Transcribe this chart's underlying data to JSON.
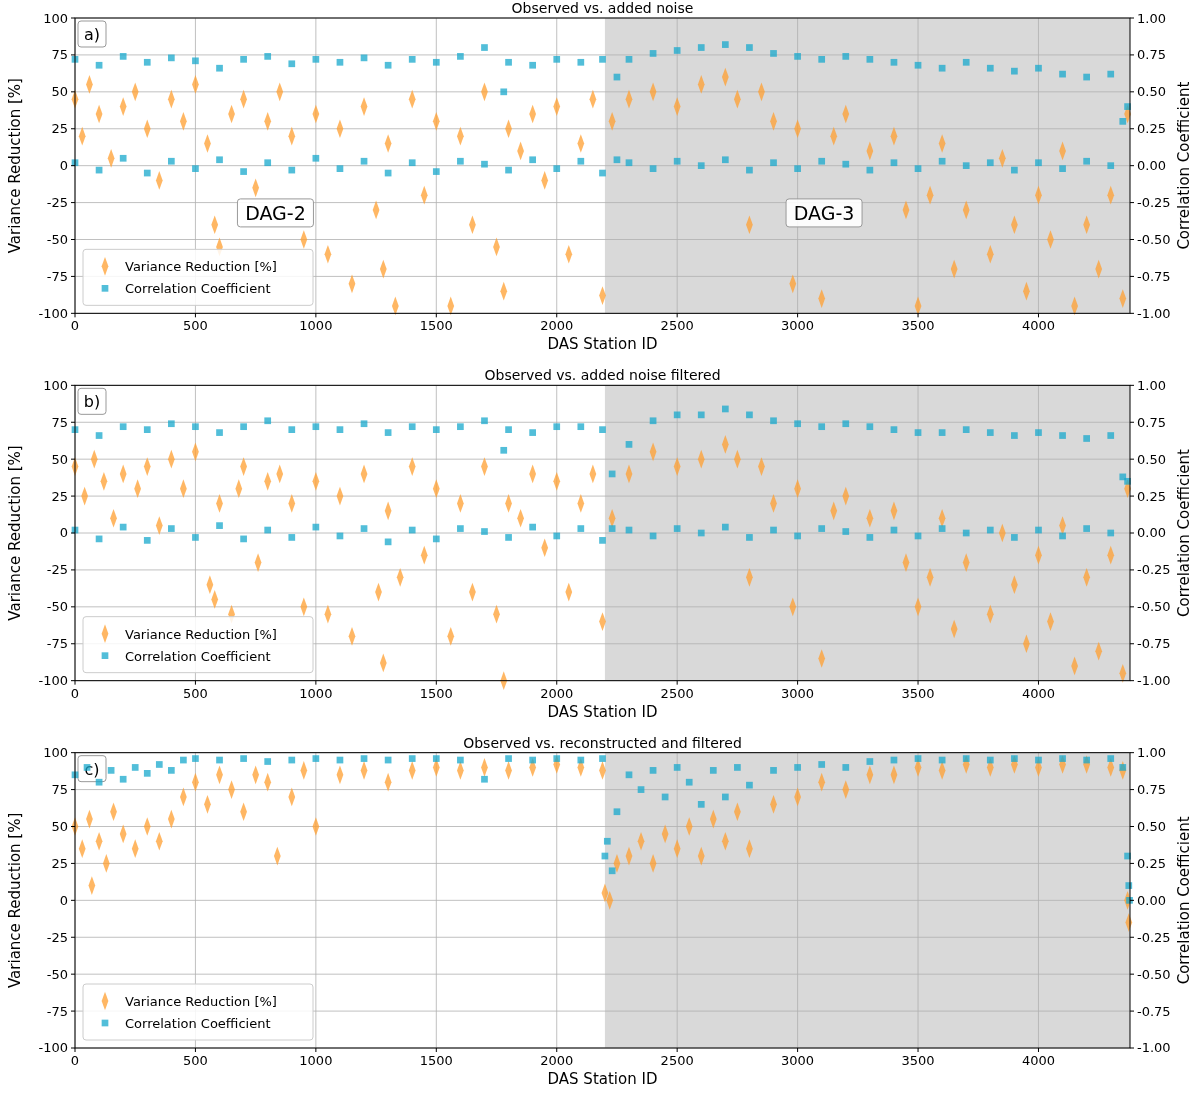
{
  "chart_data": [
    {
      "type": "scatter",
      "title": "Observed vs. added noise",
      "xlabel": "DAS Station ID",
      "ylabel": "Variance Reduction [%]",
      "y2label": "Correlation Coefficient",
      "xlim": [
        0,
        4380
      ],
      "xticks": [
        0,
        500,
        1000,
        1500,
        2000,
        2500,
        3000,
        3500,
        4000
      ],
      "ylim": [
        -100,
        100
      ],
      "yticks": [
        -100,
        -75,
        -50,
        -25,
        0,
        25,
        50,
        75,
        100
      ],
      "y2lim": [
        -1,
        1
      ],
      "y2ticks": [
        {
          "value": -1,
          "label": "-1.00"
        },
        {
          "value": -0.75,
          "label": "-0.75"
        },
        {
          "value": -0.5,
          "label": "-0.50"
        },
        {
          "value": -0.25,
          "label": "-0.25"
        },
        {
          "value": 0,
          "label": "0.00"
        },
        {
          "value": 0.25,
          "label": "0.25"
        },
        {
          "value": 0.5,
          "label": "0.50"
        },
        {
          "value": 0.75,
          "label": "0.75"
        },
        {
          "value": 1,
          "label": "1.00"
        }
      ],
      "grid": true,
      "legend": "bottom left",
      "bands": [
        {
          "axis": "x",
          "from": 2200,
          "to": 4380,
          "color": "#d9d9d9"
        }
      ],
      "annotations": [
        "a)",
        "DAG-2",
        "DAG-3"
      ],
      "series": [
        {
          "name": "Variance Reduction [%]",
          "color": "#ff9f30",
          "marker": "diamond",
          "x": [
            0,
            30,
            60,
            100,
            150,
            200,
            250,
            300,
            350,
            400,
            450,
            500,
            550,
            580,
            600,
            650,
            700,
            750,
            800,
            850,
            900,
            950,
            1000,
            1050,
            1100,
            1150,
            1200,
            1250,
            1280,
            1300,
            1330,
            1400,
            1450,
            1500,
            1560,
            1600,
            1650,
            1700,
            1750,
            1780,
            1800,
            1850,
            1900,
            1950,
            2000,
            2050,
            2100,
            2150,
            2190,
            2230,
            2300,
            2400,
            2500,
            2600,
            2700,
            2750,
            2800,
            2850,
            2900,
            2980,
            3000,
            3100,
            3150,
            3200,
            3300,
            3400,
            3450,
            3500,
            3550,
            3600,
            3650,
            3700,
            3800,
            3850,
            3900,
            3950,
            4000,
            4050,
            4100,
            4150,
            4200,
            4250,
            4300,
            4350,
            4370
          ],
          "values": [
            45,
            20,
            55,
            35,
            5,
            40,
            50,
            25,
            -10,
            45,
            30,
            55,
            15,
            -40,
            -55,
            35,
            45,
            -15,
            30,
            50,
            20,
            -50,
            35,
            -60,
            25,
            -80,
            40,
            -30,
            -70,
            15,
            -95,
            45,
            -20,
            30,
            -95,
            20,
            -40,
            50,
            -55,
            -85,
            25,
            10,
            35,
            -10,
            40,
            -60,
            15,
            45,
            -88,
            30,
            45,
            50,
            40,
            55,
            60,
            45,
            -40,
            50,
            30,
            -80,
            25,
            -90,
            20,
            35,
            10,
            20,
            -30,
            -95,
            -20,
            15,
            -70,
            -30,
            -60,
            5,
            -40,
            -85,
            -20,
            -50,
            10,
            -95,
            -40,
            -70,
            -20,
            -90,
            35
          ]
        },
        {
          "name": "Correlation Coefficient",
          "color": "#18a8cc",
          "marker": "square",
          "axis": "y2",
          "x": [
            0,
            0,
            100,
            100,
            200,
            200,
            300,
            300,
            400,
            400,
            500,
            500,
            600,
            600,
            700,
            700,
            800,
            800,
            900,
            900,
            1000,
            1000,
            1100,
            1100,
            1200,
            1200,
            1300,
            1300,
            1400,
            1400,
            1500,
            1500,
            1600,
            1600,
            1700,
            1700,
            1780,
            1800,
            1800,
            1900,
            1900,
            2000,
            2000,
            2100,
            2100,
            2190,
            2190,
            2250,
            2250,
            2300,
            2300,
            2400,
            2400,
            2500,
            2500,
            2600,
            2600,
            2700,
            2700,
            2800,
            2800,
            2900,
            2900,
            3000,
            3000,
            3100,
            3100,
            3200,
            3200,
            3300,
            3300,
            3400,
            3400,
            3500,
            3500,
            3600,
            3600,
            3700,
            3700,
            3800,
            3800,
            3900,
            3900,
            4000,
            4000,
            4100,
            4100,
            4200,
            4200,
            4300,
            4300,
            4350,
            4370
          ],
          "values": [
            0.72,
            0.02,
            0.68,
            -0.03,
            0.74,
            0.05,
            0.7,
            -0.05,
            0.73,
            0.03,
            0.71,
            -0.02,
            0.66,
            0.04,
            0.72,
            -0.04,
            0.74,
            0.02,
            0.69,
            -0.03,
            0.72,
            0.05,
            0.7,
            -0.02,
            0.73,
            0.03,
            0.68,
            -0.05,
            0.72,
            0.02,
            0.7,
            -0.04,
            0.74,
            0.03,
            0.8,
            0.01,
            0.5,
            0.7,
            -0.03,
            0.68,
            0.04,
            0.72,
            -0.02,
            0.7,
            0.03,
            0.72,
            -0.05,
            0.6,
            0.04,
            0.72,
            0.02,
            0.76,
            -0.02,
            0.78,
            0.03,
            0.8,
            0,
            0.82,
            0.04,
            0.8,
            -0.03,
            0.76,
            0.02,
            0.74,
            -0.02,
            0.72,
            0.03,
            0.74,
            0.01,
            0.72,
            -0.03,
            0.7,
            0.02,
            0.68,
            -0.02,
            0.66,
            0.03,
            0.7,
            0,
            0.66,
            0.02,
            0.64,
            -0.03,
            0.66,
            0.02,
            0.62,
            -0.02,
            0.6,
            0.03,
            0.62,
            0,
            0.3,
            0.4
          ]
        }
      ]
    },
    {
      "type": "scatter",
      "title": "Observed vs. added noise filtered",
      "xlabel": "DAS Station ID",
      "ylabel": "Variance Reduction [%]",
      "y2label": "Correlation Coefficient",
      "xlim": [
        0,
        4380
      ],
      "xticks": [
        0,
        500,
        1000,
        1500,
        2000,
        2500,
        3000,
        3500,
        4000
      ],
      "ylim": [
        -100,
        100
      ],
      "yticks": [
        -100,
        -75,
        -50,
        -25,
        0,
        25,
        50,
        75,
        100
      ],
      "y2lim": [
        -1,
        1
      ],
      "y2ticks": [
        {
          "value": -1,
          "label": "-1.00"
        },
        {
          "value": -0.75,
          "label": "-0.75"
        },
        {
          "value": -0.5,
          "label": "-0.50"
        },
        {
          "value": -0.25,
          "label": "-0.25"
        },
        {
          "value": 0,
          "label": "0.00"
        },
        {
          "value": 0.25,
          "label": "0.25"
        },
        {
          "value": 0.5,
          "label": "0.50"
        },
        {
          "value": 0.75,
          "label": "0.75"
        },
        {
          "value": 1,
          "label": "1.00"
        }
      ],
      "grid": true,
      "legend": "bottom left",
      "bands": [
        {
          "axis": "x",
          "from": 2200,
          "to": 4380,
          "color": "#d9d9d9"
        }
      ],
      "annotations": [
        "b)"
      ],
      "series": [
        {
          "name": "Variance Reduction [%]",
          "color": "#ff9f30",
          "marker": "diamond",
          "x": [
            0,
            40,
            80,
            120,
            160,
            200,
            260,
            300,
            350,
            400,
            450,
            500,
            560,
            580,
            600,
            650,
            680,
            700,
            760,
            800,
            850,
            900,
            950,
            1000,
            1050,
            1100,
            1150,
            1200,
            1260,
            1280,
            1300,
            1350,
            1400,
            1450,
            1500,
            1560,
            1600,
            1650,
            1700,
            1750,
            1780,
            1800,
            1850,
            1900,
            1950,
            2000,
            2050,
            2100,
            2150,
            2190,
            2230,
            2300,
            2400,
            2500,
            2600,
            2700,
            2750,
            2800,
            2850,
            2900,
            2980,
            3000,
            3100,
            3150,
            3200,
            3300,
            3400,
            3450,
            3500,
            3550,
            3600,
            3650,
            3700,
            3800,
            3850,
            3900,
            3950,
            4000,
            4050,
            4100,
            4150,
            4200,
            4250,
            4300,
            4350,
            4370
          ],
          "values": [
            45,
            25,
            50,
            35,
            10,
            40,
            30,
            45,
            5,
            50,
            30,
            55,
            -35,
            -45,
            20,
            -55,
            30,
            45,
            -20,
            35,
            40,
            20,
            -50,
            35,
            -55,
            25,
            -70,
            40,
            -40,
            -88,
            15,
            -30,
            45,
            -15,
            30,
            -70,
            20,
            -40,
            45,
            -55,
            -100,
            20,
            10,
            40,
            -10,
            35,
            -40,
            20,
            40,
            -60,
            10,
            40,
            55,
            45,
            50,
            60,
            50,
            -30,
            45,
            20,
            -50,
            30,
            -85,
            15,
            25,
            10,
            15,
            -20,
            -50,
            -30,
            10,
            -65,
            -20,
            -55,
            0,
            -35,
            -75,
            -15,
            -60,
            5,
            -90,
            -30,
            -80,
            -15,
            -95,
            30
          ]
        },
        {
          "name": "Correlation Coefficient",
          "color": "#18a8cc",
          "marker": "square",
          "axis": "y2",
          "x": [
            0,
            0,
            100,
            100,
            200,
            200,
            300,
            300,
            400,
            400,
            500,
            500,
            600,
            600,
            700,
            700,
            800,
            800,
            900,
            900,
            1000,
            1000,
            1100,
            1100,
            1200,
            1200,
            1300,
            1300,
            1400,
            1400,
            1500,
            1500,
            1600,
            1600,
            1700,
            1700,
            1780,
            1800,
            1800,
            1900,
            1900,
            2000,
            2000,
            2100,
            2100,
            2190,
            2190,
            2230,
            2230,
            2300,
            2300,
            2400,
            2400,
            2500,
            2500,
            2600,
            2600,
            2700,
            2700,
            2800,
            2800,
            2900,
            2900,
            3000,
            3000,
            3100,
            3100,
            3200,
            3200,
            3300,
            3300,
            3400,
            3400,
            3500,
            3500,
            3600,
            3600,
            3700,
            3700,
            3800,
            3800,
            3900,
            3900,
            4000,
            4000,
            4100,
            4100,
            4200,
            4200,
            4300,
            4300,
            4350,
            4370
          ],
          "values": [
            0.7,
            0.02,
            0.66,
            -0.04,
            0.72,
            0.04,
            0.7,
            -0.05,
            0.74,
            0.03,
            0.72,
            -0.03,
            0.68,
            0.05,
            0.72,
            -0.04,
            0.76,
            0.02,
            0.7,
            -0.03,
            0.72,
            0.04,
            0.7,
            -0.02,
            0.74,
            0.03,
            0.68,
            -0.06,
            0.72,
            0.02,
            0.7,
            -0.04,
            0.72,
            0.03,
            0.76,
            0.01,
            0.56,
            0.7,
            -0.03,
            0.68,
            0.04,
            0.72,
            -0.02,
            0.72,
            0.03,
            0.7,
            -0.05,
            0.4,
            0.03,
            0.6,
            0.02,
            0.76,
            -0.02,
            0.8,
            0.03,
            0.8,
            0,
            0.84,
            0.04,
            0.8,
            -0.03,
            0.76,
            0.02,
            0.74,
            -0.02,
            0.72,
            0.03,
            0.74,
            0.01,
            0.72,
            -0.03,
            0.7,
            0.02,
            0.68,
            -0.02,
            0.68,
            0.03,
            0.7,
            0,
            0.68,
            0.02,
            0.66,
            -0.03,
            0.68,
            0.02,
            0.66,
            -0.02,
            0.64,
            0.03,
            0.66,
            0,
            0.38,
            0.35
          ]
        }
      ]
    },
    {
      "type": "scatter",
      "title": "Observed vs. reconstructed and filtered",
      "xlabel": "DAS Station ID",
      "ylabel": "Variance Reduction [%]",
      "y2label": "Correlation Coefficient",
      "xlim": [
        0,
        4380
      ],
      "xticks": [
        0,
        500,
        1000,
        1500,
        2000,
        2500,
        3000,
        3500,
        4000
      ],
      "ylim": [
        -100,
        100
      ],
      "yticks": [
        -100,
        -75,
        -50,
        -25,
        0,
        25,
        50,
        75,
        100
      ],
      "y2lim": [
        -1,
        1
      ],
      "y2ticks": [
        {
          "value": -1,
          "label": "-1.00"
        },
        {
          "value": -0.75,
          "label": "-0.75"
        },
        {
          "value": -0.5,
          "label": "-0.50"
        },
        {
          "value": -0.25,
          "label": "-0.25"
        },
        {
          "value": 0,
          "label": "0.00"
        },
        {
          "value": 0.25,
          "label": "0.25"
        },
        {
          "value": 0.5,
          "label": "0.50"
        },
        {
          "value": 0.75,
          "label": "0.75"
        },
        {
          "value": 1,
          "label": "1.00"
        }
      ],
      "grid": true,
      "legend": "bottom left",
      "bands": [
        {
          "axis": "x",
          "from": 2200,
          "to": 4380,
          "color": "#d9d9d9"
        }
      ],
      "annotations": [
        "c)"
      ],
      "series": [
        {
          "name": "Variance Reduction [%]",
          "color": "#ff9f30",
          "marker": "diamond",
          "x": [
            0,
            30,
            60,
            70,
            100,
            130,
            160,
            200,
            250,
            300,
            350,
            400,
            450,
            500,
            550,
            600,
            650,
            700,
            750,
            800,
            840,
            900,
            950,
            1000,
            1100,
            1200,
            1300,
            1400,
            1500,
            1600,
            1700,
            1800,
            1900,
            2000,
            2100,
            2190,
            2200,
            2220,
            2250,
            2300,
            2350,
            2400,
            2450,
            2500,
            2550,
            2600,
            2650,
            2700,
            2750,
            2800,
            2900,
            3000,
            3100,
            3200,
            3300,
            3400,
            3500,
            3600,
            3700,
            3800,
            3900,
            4000,
            4100,
            4200,
            4300,
            4350,
            4370,
            4375
          ],
          "values": [
            50,
            35,
            55,
            10,
            40,
            25,
            60,
            45,
            35,
            50,
            40,
            55,
            70,
            80,
            65,
            85,
            75,
            60,
            85,
            80,
            30,
            70,
            88,
            50,
            85,
            88,
            80,
            88,
            90,
            88,
            90,
            88,
            90,
            92,
            90,
            88,
            5,
            0,
            25,
            30,
            40,
            25,
            45,
            35,
            50,
            30,
            55,
            40,
            60,
            35,
            65,
            70,
            80,
            75,
            85,
            85,
            90,
            88,
            92,
            90,
            92,
            90,
            92,
            92,
            90,
            88,
            0,
            -15
          ]
        },
        {
          "name": "Correlation Coefficient",
          "color": "#18a8cc",
          "marker": "square",
          "axis": "y2",
          "x": [
            0,
            50,
            100,
            150,
            200,
            250,
            300,
            350,
            400,
            450,
            500,
            600,
            700,
            800,
            900,
            1000,
            1100,
            1200,
            1300,
            1400,
            1500,
            1600,
            1700,
            1800,
            1900,
            2000,
            2100,
            2190,
            2200,
            2210,
            2230,
            2250,
            2300,
            2350,
            2400,
            2450,
            2500,
            2550,
            2600,
            2650,
            2700,
            2750,
            2800,
            2900,
            3000,
            3100,
            3200,
            3300,
            3400,
            3500,
            3600,
            3700,
            3800,
            3900,
            4000,
            4100,
            4200,
            4300,
            4350,
            4370,
            4375,
            4378
          ],
          "values": [
            0.85,
            0.9,
            0.8,
            0.88,
            0.82,
            0.9,
            0.86,
            0.92,
            0.88,
            0.95,
            0.96,
            0.95,
            0.96,
            0.94,
            0.95,
            0.96,
            0.95,
            0.96,
            0.95,
            0.96,
            0.96,
            0.95,
            0.82,
            0.96,
            0.95,
            0.96,
            0.95,
            0.96,
            0.3,
            0.4,
            0.2,
            0.6,
            0.85,
            0.75,
            0.88,
            0.7,
            0.9,
            0.8,
            0.65,
            0.88,
            0.7,
            0.9,
            0.78,
            0.88,
            0.9,
            0.92,
            0.9,
            0.94,
            0.95,
            0.96,
            0.95,
            0.96,
            0.95,
            0.96,
            0.95,
            0.96,
            0.95,
            0.96,
            0.9,
            0.3,
            0.1,
            0.0
          ]
        }
      ]
    }
  ]
}
